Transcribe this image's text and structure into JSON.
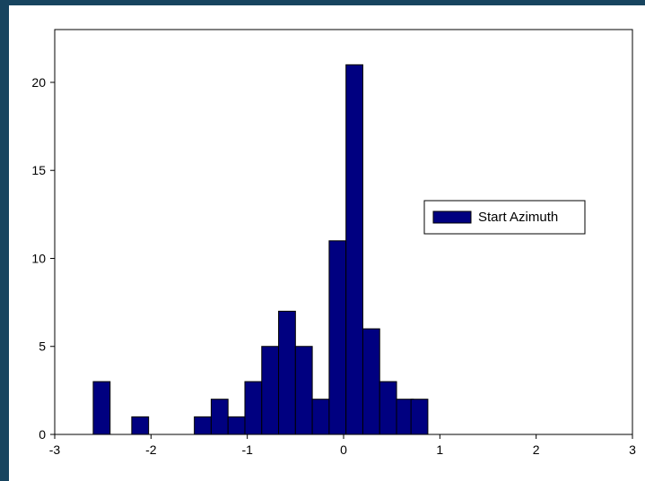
{
  "chart_data": {
    "type": "bar",
    "x_bin_left_edges": [
      -2.6,
      -2.2,
      -1.55,
      -1.375,
      -1.2,
      -1.025,
      -0.85,
      -0.675,
      -0.5,
      -0.325,
      -0.15,
      0.025,
      0.2,
      0.375,
      0.55,
      0.7
    ],
    "bin_width": 0.175,
    "values": [
      3,
      1,
      1,
      2,
      1,
      3,
      5,
      7,
      5,
      2,
      11,
      21,
      6,
      3,
      2,
      2
    ],
    "xlim": [
      -3,
      3
    ],
    "ylim": [
      0,
      23
    ],
    "x_ticks": [
      -3,
      -2,
      -1,
      0,
      1,
      2,
      3
    ],
    "y_ticks": [
      0,
      5,
      10,
      15,
      20
    ],
    "grid": false,
    "legend": {
      "entries": [
        "Start Azimuth"
      ],
      "placement": "right-middle"
    },
    "colors": {
      "bar_fill": "#000080",
      "bar_stroke": "#000000",
      "page_background": "#17445f"
    }
  }
}
